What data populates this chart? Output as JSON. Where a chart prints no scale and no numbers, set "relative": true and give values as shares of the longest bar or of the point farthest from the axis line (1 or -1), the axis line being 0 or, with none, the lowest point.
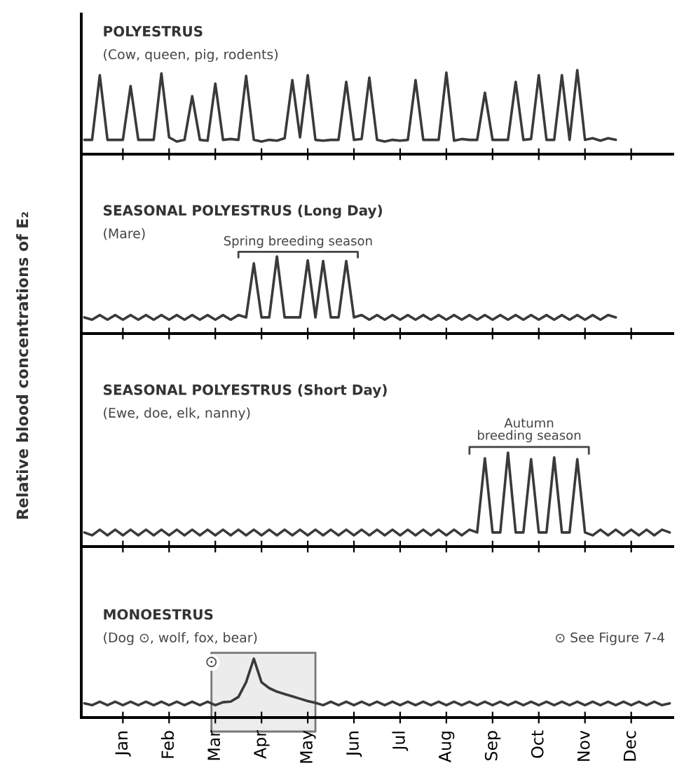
{
  "chart_data": [
    {
      "type": "line",
      "title": "POLYESTRUS",
      "subtitle": "(Cow, queen, pig, rodents)",
      "ylabel": "Relative blood concentrations of E₂",
      "relative": true,
      "tick_labels": false,
      "categories": [
        null,
        null,
        null,
        null,
        null,
        null,
        null,
        null,
        null,
        null,
        null,
        null,
        null,
        null,
        null,
        null,
        null,
        null,
        null,
        null,
        null,
        null,
        null,
        null,
        null,
        null,
        null,
        null,
        null,
        null,
        null,
        null,
        null,
        null,
        null,
        null,
        null,
        null,
        null,
        null,
        null,
        null,
        null,
        null,
        null,
        null,
        null,
        null,
        null,
        null,
        null,
        null,
        null,
        null,
        null,
        null,
        null,
        null,
        null,
        null,
        null,
        null,
        null,
        null,
        null,
        null,
        null,
        null,
        null,
        null,
        null,
        null,
        null,
        null,
        null,
        null,
        null
      ],
      "series": [
        {
          "color": "#3a3a3a",
          "values": [
            0.17,
            0.17,
            0.94,
            0.17,
            0.17,
            0.17,
            0.81,
            0.17,
            0.17,
            0.17,
            0.96,
            0.2,
            0.15,
            0.17,
            0.69,
            0.17,
            0.16,
            0.84,
            0.17,
            0.18,
            0.17,
            0.93,
            0.17,
            0.15,
            0.17,
            0.16,
            0.19,
            0.88,
            0.2,
            0.94,
            0.17,
            0.16,
            0.17,
            0.17,
            0.86,
            0.17,
            0.18,
            0.91,
            0.17,
            0.15,
            0.17,
            0.16,
            0.17,
            0.88,
            0.17,
            0.17,
            0.17,
            0.97,
            0.16,
            0.18,
            0.17,
            0.17,
            0.73,
            0.17,
            0.17,
            0.17,
            0.86,
            0.17,
            0.18,
            0.94,
            0.17,
            0.17,
            0.94,
            0.17,
            1,
            0.17,
            0.19,
            0.16,
            0.19,
            0.17,
            null,
            null,
            null,
            null,
            null,
            null,
            null
          ]
        }
      ]
    },
    {
      "type": "line",
      "title": "SEASONAL POLYESTRUS (Long Day)",
      "subtitle": "(Mare)",
      "relative": true,
      "tick_labels": false,
      "categories": [
        null,
        null,
        null,
        null,
        null,
        null,
        null,
        null,
        null,
        null,
        null,
        null,
        null,
        null,
        null,
        null,
        null,
        null,
        null,
        null,
        null,
        null,
        null,
        null,
        null,
        null,
        null,
        null,
        null,
        null,
        null,
        null,
        null,
        null,
        null,
        null,
        null,
        null,
        null,
        null,
        null,
        null,
        null,
        null,
        null,
        null,
        null,
        null,
        null,
        null,
        null,
        null,
        null,
        null,
        null,
        null,
        null,
        null,
        null,
        null,
        null,
        null,
        null,
        null,
        null,
        null,
        null,
        null,
        null,
        null,
        null,
        null,
        null,
        null,
        null,
        null,
        null
      ],
      "annotations": [
        "Spring breeding season"
      ],
      "series": [
        {
          "color": "#3a3a3a",
          "values": [
            0.21,
            0.18,
            0.24,
            0.18,
            0.24,
            0.18,
            0.24,
            0.18,
            0.24,
            0.18,
            0.24,
            0.18,
            0.24,
            0.18,
            0.24,
            0.18,
            0.24,
            0.18,
            0.24,
            0.18,
            0.24,
            0.21,
            0.91,
            0.21,
            0.21,
            1,
            0.21,
            0.21,
            0.21,
            0.95,
            0.21,
            0.94,
            0.21,
            0.21,
            0.94,
            0.21,
            0.24,
            0.18,
            0.24,
            0.18,
            0.24,
            0.18,
            0.24,
            0.18,
            0.24,
            0.18,
            0.24,
            0.18,
            0.24,
            0.18,
            0.24,
            0.18,
            0.24,
            0.18,
            0.24,
            0.18,
            0.24,
            0.18,
            0.24,
            0.18,
            0.24,
            0.18,
            0.24,
            0.18,
            0.24,
            0.18,
            0.24,
            0.18,
            0.24,
            0.21,
            null,
            null,
            null,
            null,
            null,
            null,
            null
          ]
        }
      ]
    },
    {
      "type": "line",
      "title": "SEASONAL POLYESTRUS (Short Day)",
      "subtitle": "(Ewe, doe, elk, nanny)",
      "relative": true,
      "tick_labels": false,
      "categories": [
        null,
        null,
        null,
        null,
        null,
        null,
        null,
        null,
        null,
        null,
        null,
        null,
        null,
        null,
        null,
        null,
        null,
        null,
        null,
        null,
        null,
        null,
        null,
        null,
        null,
        null,
        null,
        null,
        null,
        null,
        null,
        null,
        null,
        null,
        null,
        null,
        null,
        null,
        null,
        null,
        null,
        null,
        null,
        null,
        null,
        null,
        null,
        null,
        null,
        null,
        null,
        null,
        null,
        null,
        null,
        null,
        null,
        null,
        null,
        null,
        null,
        null,
        null,
        null,
        null,
        null,
        null,
        null,
        null,
        null,
        null,
        null,
        null,
        null,
        null,
        null,
        null
      ],
      "annotations": [
        "Autumn\nbreeding season"
      ],
      "series": [
        {
          "color": "#3a3a3a",
          "values": [
            0.15,
            0.12,
            0.18,
            0.12,
            0.18,
            0.12,
            0.18,
            0.12,
            0.18,
            0.12,
            0.18,
            0.12,
            0.18,
            0.12,
            0.18,
            0.12,
            0.18,
            0.12,
            0.18,
            0.12,
            0.18,
            0.12,
            0.18,
            0.12,
            0.18,
            0.12,
            0.18,
            0.12,
            0.18,
            0.12,
            0.18,
            0.12,
            0.18,
            0.12,
            0.18,
            0.12,
            0.18,
            0.12,
            0.18,
            0.12,
            0.18,
            0.12,
            0.18,
            0.12,
            0.18,
            0.12,
            0.18,
            0.12,
            0.18,
            0.12,
            0.18,
            0.15,
            0.94,
            0.15,
            0.15,
            1,
            0.15,
            0.15,
            0.93,
            0.15,
            0.15,
            0.95,
            0.15,
            0.15,
            0.93,
            0.15,
            0.12,
            0.18,
            0.12,
            0.18,
            0.12,
            0.18,
            0.12,
            0.18,
            0.12,
            0.18,
            0.15
          ]
        }
      ]
    },
    {
      "type": "line",
      "title": "MONOESTRUS",
      "subtitle": "(Dog ⊙, wolf, fox, bear)",
      "relative": true,
      "tick_labels": "x",
      "categories": [
        null,
        null,
        null,
        null,
        null,
        "Jan",
        null,
        null,
        null,
        null,
        null,
        "Feb",
        null,
        null,
        null,
        null,
        null,
        "Mar",
        null,
        null,
        null,
        null,
        null,
        "Apr",
        null,
        null,
        null,
        null,
        null,
        "May",
        null,
        null,
        null,
        null,
        null,
        "Jun",
        null,
        null,
        null,
        null,
        null,
        "Jul",
        null,
        null,
        null,
        null,
        null,
        "Aug",
        null,
        null,
        null,
        null,
        null,
        "Sep",
        null,
        null,
        null,
        null,
        null,
        "Oct",
        null,
        null,
        null,
        null,
        null,
        "Nov",
        null,
        null,
        null,
        null,
        null,
        "Dec",
        null,
        null,
        null,
        null,
        null
      ],
      "annotations": [
        "⊙ See Figure 7-4",
        "⊙"
      ],
      "series": [
        {
          "color": "#3a3a3a",
          "values": [
            0.24,
            0.21,
            0.27,
            0.21,
            0.27,
            0.21,
            0.27,
            0.21,
            0.27,
            0.21,
            0.27,
            0.21,
            0.27,
            0.21,
            0.27,
            0.21,
            0.27,
            0.21,
            0.26,
            0.27,
            0.35,
            0.6,
            1,
            0.6,
            0.5,
            0.44,
            0.4,
            0.36,
            0.32,
            0.28,
            0.25,
            0.21,
            0.27,
            0.21,
            0.27,
            0.21,
            0.27,
            0.21,
            0.27,
            0.21,
            0.27,
            0.21,
            0.27,
            0.21,
            0.27,
            0.21,
            0.27,
            0.21,
            0.27,
            0.21,
            0.27,
            0.21,
            0.27,
            0.21,
            0.27,
            0.21,
            0.27,
            0.21,
            0.27,
            0.21,
            0.27,
            0.21,
            0.27,
            0.21,
            0.27,
            0.21,
            0.27,
            0.21,
            0.27,
            0.21,
            0.27,
            0.21,
            0.27,
            0.21,
            0.27,
            0.21,
            0.24
          ]
        }
      ]
    }
  ]
}
